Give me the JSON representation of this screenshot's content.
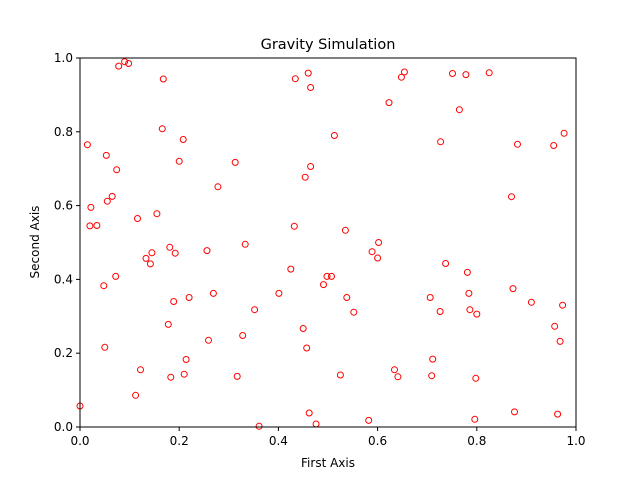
{
  "chart_data": {
    "type": "scatter",
    "title": "Gravity Simulation",
    "xlabel": "First Axis",
    "ylabel": "Second Axis",
    "xlim": [
      0,
      1
    ],
    "ylim": [
      0,
      1
    ],
    "xticks": [
      "0.0",
      "0.2",
      "0.4",
      "0.6",
      "0.8",
      "1.0"
    ],
    "yticks": [
      "0.0",
      "0.2",
      "0.4",
      "0.6",
      "0.8",
      "1.0"
    ],
    "grid": false,
    "marker": "hollow-circle",
    "colors": {
      "marker": "#ff0000",
      "axes": "#000000",
      "background": "#ffffff"
    },
    "series": [
      {
        "points": [
          [
            0.0,
            0.057
          ],
          [
            0.015,
            0.765
          ],
          [
            0.022,
            0.595
          ],
          [
            0.02,
            0.545
          ],
          [
            0.034,
            0.546
          ],
          [
            0.048,
            0.383
          ],
          [
            0.05,
            0.216
          ],
          [
            0.053,
            0.736
          ],
          [
            0.055,
            0.612
          ],
          [
            0.065,
            0.625
          ],
          [
            0.072,
            0.408
          ],
          [
            0.074,
            0.697
          ],
          [
            0.078,
            0.978
          ],
          [
            0.09,
            0.99
          ],
          [
            0.098,
            0.985
          ],
          [
            0.112,
            0.086
          ],
          [
            0.116,
            0.565
          ],
          [
            0.122,
            0.155
          ],
          [
            0.133,
            0.457
          ],
          [
            0.142,
            0.442
          ],
          [
            0.145,
            0.472
          ],
          [
            0.155,
            0.578
          ],
          [
            0.166,
            0.808
          ],
          [
            0.168,
            0.943
          ],
          [
            0.178,
            0.278
          ],
          [
            0.181,
            0.487
          ],
          [
            0.183,
            0.135
          ],
          [
            0.189,
            0.34
          ],
          [
            0.192,
            0.471
          ],
          [
            0.2,
            0.72
          ],
          [
            0.208,
            0.779
          ],
          [
            0.21,
            0.143
          ],
          [
            0.214,
            0.183
          ],
          [
            0.22,
            0.351
          ],
          [
            0.256,
            0.478
          ],
          [
            0.259,
            0.235
          ],
          [
            0.269,
            0.362
          ],
          [
            0.278,
            0.651
          ],
          [
            0.313,
            0.717
          ],
          [
            0.317,
            0.137
          ],
          [
            0.328,
            0.248
          ],
          [
            0.333,
            0.495
          ],
          [
            0.352,
            0.318
          ],
          [
            0.361,
            0.002
          ],
          [
            0.401,
            0.362
          ],
          [
            0.425,
            0.428
          ],
          [
            0.432,
            0.544
          ],
          [
            0.434,
            0.944
          ],
          [
            0.45,
            0.267
          ],
          [
            0.454,
            0.677
          ],
          [
            0.457,
            0.214
          ],
          [
            0.46,
            0.959
          ],
          [
            0.462,
            0.038
          ],
          [
            0.465,
            0.92
          ],
          [
            0.465,
            0.706
          ],
          [
            0.476,
            0.008
          ],
          [
            0.491,
            0.386
          ],
          [
            0.498,
            0.408
          ],
          [
            0.507,
            0.408
          ],
          [
            0.513,
            0.79
          ],
          [
            0.525,
            0.141
          ],
          [
            0.535,
            0.533
          ],
          [
            0.538,
            0.351
          ],
          [
            0.552,
            0.311
          ],
          [
            0.582,
            0.018
          ],
          [
            0.589,
            0.475
          ],
          [
            0.6,
            0.458
          ],
          [
            0.602,
            0.5
          ],
          [
            0.623,
            0.879
          ],
          [
            0.634,
            0.155
          ],
          [
            0.641,
            0.136
          ],
          [
            0.648,
            0.948
          ],
          [
            0.654,
            0.962
          ],
          [
            0.706,
            0.351
          ],
          [
            0.709,
            0.139
          ],
          [
            0.711,
            0.184
          ],
          [
            0.726,
            0.313
          ],
          [
            0.727,
            0.773
          ],
          [
            0.737,
            0.443
          ],
          [
            0.751,
            0.958
          ],
          [
            0.765,
            0.86
          ],
          [
            0.778,
            0.955
          ],
          [
            0.781,
            0.419
          ],
          [
            0.784,
            0.362
          ],
          [
            0.786,
            0.318
          ],
          [
            0.796,
            0.021
          ],
          [
            0.798,
            0.132
          ],
          [
            0.8,
            0.306
          ],
          [
            0.825,
            0.96
          ],
          [
            0.87,
            0.624
          ],
          [
            0.873,
            0.375
          ],
          [
            0.876,
            0.041
          ],
          [
            0.882,
            0.766
          ],
          [
            0.91,
            0.338
          ],
          [
            0.955,
            0.763
          ],
          [
            0.957,
            0.273
          ],
          [
            0.963,
            0.035
          ],
          [
            0.968,
            0.232
          ],
          [
            0.973,
            0.33
          ],
          [
            0.976,
            0.796
          ]
        ]
      }
    ]
  }
}
